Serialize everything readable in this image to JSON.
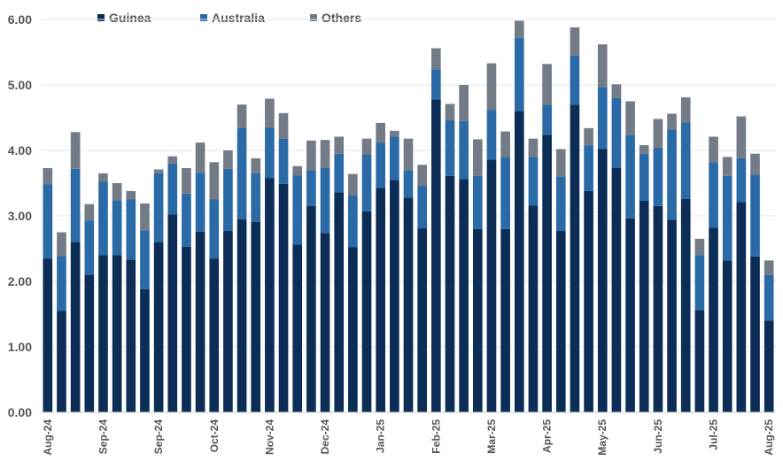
{
  "chart_data": {
    "type": "bar",
    "stacked": true,
    "x_tick_labels": [
      "Aug-24",
      "Sep-24",
      "Sep-24",
      "Oct-24",
      "Nov-24",
      "Dec-24",
      "Jan-25",
      "Feb-25",
      "Mar-25",
      "Apr-25",
      "May-25",
      "Jun-25",
      "Jul-25",
      "Aug-25"
    ],
    "y_tick_labels": [
      "0.00",
      "1.00",
      "2.00",
      "3.00",
      "4.00",
      "5.00",
      "6.00"
    ],
    "ylim": [
      0,
      6
    ],
    "grid": true,
    "legend_position": "top",
    "series": [
      {
        "name": "Guinea",
        "color": "#0b2d56",
        "values": [
          2.35,
          1.55,
          2.6,
          2.1,
          2.4,
          2.4,
          2.33,
          1.88,
          2.6,
          3.02,
          2.53,
          2.76,
          2.35,
          2.77,
          2.95,
          2.91,
          3.58,
          3.49,
          2.56,
          3.15,
          2.74,
          3.36,
          2.52,
          3.07,
          3.43,
          3.55,
          3.28,
          2.81,
          4.78,
          3.61,
          3.56,
          2.8,
          3.86,
          2.8,
          4.6,
          3.16,
          4.24,
          2.77,
          4.7,
          3.38,
          4.02,
          3.73,
          2.96,
          3.23,
          3.15,
          2.94,
          3.26,
          1.56,
          2.82,
          2.32,
          3.21,
          2.38,
          1.4
        ]
      },
      {
        "name": "Australia",
        "color": "#2a6aa6",
        "values": [
          1.13,
          0.84,
          1.12,
          0.83,
          1.12,
          0.84,
          0.92,
          0.9,
          1.05,
          0.78,
          0.81,
          0.9,
          0.9,
          0.95,
          1.39,
          0.74,
          0.77,
          0.69,
          1.06,
          0.55,
          0.99,
          0.59,
          0.8,
          0.87,
          0.69,
          0.66,
          0.42,
          0.65,
          0.46,
          0.85,
          0.89,
          0.81,
          0.76,
          1.1,
          1.12,
          0.74,
          0.46,
          0.83,
          0.75,
          0.7,
          0.95,
          1.07,
          1.27,
          0.72,
          0.89,
          1.38,
          1.17,
          0.84,
          1.0,
          1.29,
          0.67,
          1.25,
          0.7
        ]
      },
      {
        "name": "Others",
        "color": "#737b86",
        "values": [
          0.25,
          0.36,
          0.56,
          0.25,
          0.13,
          0.26,
          0.13,
          0.41,
          0.06,
          0.11,
          0.39,
          0.46,
          0.57,
          0.28,
          0.36,
          0.23,
          0.44,
          0.39,
          0.14,
          0.45,
          0.43,
          0.26,
          0.32,
          0.24,
          0.3,
          0.09,
          0.48,
          0.32,
          0.32,
          0.25,
          0.55,
          0.56,
          0.71,
          0.39,
          0.26,
          0.28,
          0.62,
          0.42,
          0.43,
          0.26,
          0.65,
          0.21,
          0.52,
          0.13,
          0.44,
          0.24,
          0.38,
          0.25,
          0.39,
          0.29,
          0.64,
          0.32,
          0.22
        ]
      }
    ]
  }
}
